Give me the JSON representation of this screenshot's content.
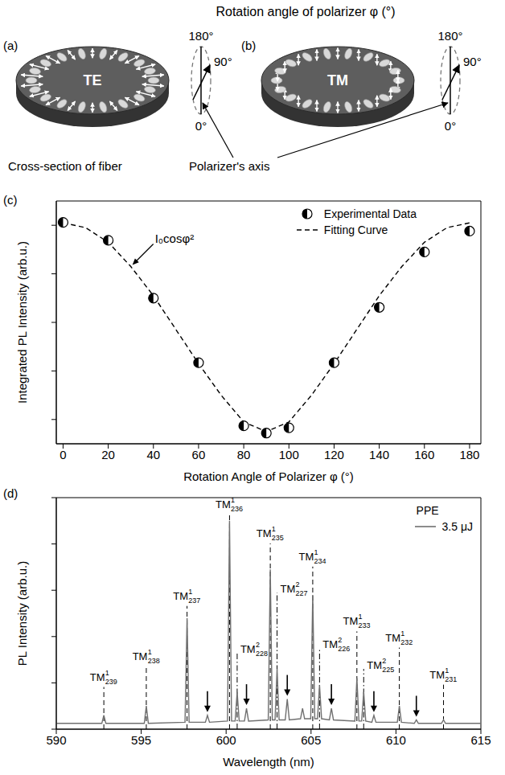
{
  "header": {
    "title": "Rotation angle of polarizer φ (°)"
  },
  "diagrams": [
    {
      "panel": "(a)",
      "mode": "TE",
      "angle_labels": [
        "180°",
        "90°",
        "0°"
      ]
    },
    {
      "panel": "(b)",
      "mode": "TM",
      "angle_labels": [
        "180°",
        "90°",
        "0°"
      ]
    }
  ],
  "annotations": {
    "fiber": "Cross-section of fiber",
    "polarizer": "Polarizer's axis"
  },
  "chart_data": [
    {
      "panel": "(c)",
      "type": "scatter",
      "xlabel": "Rotation Angle of Polarizer φ (°)",
      "ylabel": "Integrated PL Intensity (arb.u.)",
      "xlim": [
        -3,
        185
      ],
      "xticks": [
        0,
        20,
        40,
        60,
        80,
        100,
        120,
        140,
        160,
        180
      ],
      "ylim": [
        0,
        5
      ],
      "yticks": [
        0.5,
        1.5,
        2.5,
        3.5,
        4.5
      ],
      "tick_labels": "x",
      "legend": "upper right",
      "annotation": {
        "text": "I₀cosφ²"
      },
      "series": [
        {
          "name": "Experimental Data",
          "type": "scatter",
          "marker": "half_filled_circle",
          "color": "#000000",
          "x": [
            0,
            20,
            40,
            60,
            80,
            90,
            100,
            120,
            140,
            160,
            180
          ],
          "values": [
            4.56,
            4.19,
            3.0,
            1.67,
            0.37,
            0.22,
            0.33,
            1.67,
            2.81,
            3.95,
            4.38
          ]
        },
        {
          "name": "Fitting Curve",
          "type": "line",
          "line_style": "dashed",
          "color": "#000000",
          "x": [
            0,
            10,
            20,
            30,
            40,
            50,
            60,
            70,
            80,
            90,
            100,
            110,
            120,
            130,
            140,
            150,
            160,
            170,
            180
          ],
          "values": [
            4.55,
            4.45,
            4.15,
            3.65,
            3.05,
            2.35,
            1.65,
            1.0,
            0.45,
            0.25,
            0.45,
            1.0,
            1.65,
            2.35,
            3.05,
            3.65,
            4.15,
            4.45,
            4.55
          ]
        }
      ]
    },
    {
      "panel": "(d)",
      "type": "line",
      "xlabel": "Wavelength (nm)",
      "ylabel": "PL Intensity (arb.u.)",
      "xlim": [
        590,
        615
      ],
      "xticks": [
        590,
        595,
        600,
        605,
        610,
        615
      ],
      "ylim": [
        0,
        10
      ],
      "yticks": [
        0,
        2,
        4,
        6,
        8,
        10
      ],
      "tick_labels": "x",
      "legend": "upper right",
      "legend_title": "PPE",
      "series": [
        {
          "name": "3.5 μJ",
          "color": "#707070",
          "x": [
            590,
            592.68,
            592.8,
            592.92,
            595.18,
            595.3,
            595.42,
            597.58,
            597.7,
            597.82,
            598.78,
            598.9,
            599.02,
            600.08,
            600.2,
            600.32,
            600.53,
            600.65,
            600.77,
            601.08,
            601.2,
            601.32,
            602.48,
            602.6,
            602.72,
            602.88,
            603.0,
            603.12,
            603.48,
            603.6,
            603.72,
            604.38,
            604.5,
            604.62,
            604.98,
            605.1,
            605.22,
            605.38,
            605.5,
            605.62,
            606.08,
            606.2,
            606.32,
            607.58,
            607.7,
            607.82,
            607.98,
            608.1,
            608.22,
            608.58,
            608.7,
            608.82,
            610.08,
            610.2,
            610.32,
            611.08,
            611.2,
            611.32,
            612.68,
            612.8,
            612.92,
            615
          ],
          "values": [
            0.25,
            0.25,
            0.6,
            0.25,
            0.25,
            1.0,
            0.25,
            0.3,
            4.8,
            0.3,
            0.3,
            0.6,
            0.3,
            0.35,
            9.0,
            0.35,
            0.35,
            1.6,
            0.35,
            0.35,
            0.9,
            0.35,
            0.4,
            6.9,
            0.4,
            0.4,
            2.6,
            0.4,
            0.4,
            1.3,
            0.4,
            0.45,
            0.9,
            0.45,
            0.45,
            5.8,
            0.45,
            0.45,
            1.9,
            0.45,
            0.4,
            0.9,
            0.4,
            0.35,
            2.2,
            0.35,
            0.35,
            1.6,
            0.35,
            0.3,
            0.6,
            0.3,
            0.3,
            1.0,
            0.3,
            0.25,
            0.4,
            0.25,
            0.25,
            0.4,
            0.25,
            0.25
          ]
        }
      ],
      "peak_labels": [
        {
          "x": 592.8,
          "text": "TM",
          "sup": "1",
          "sub": "239",
          "line_style": "dashed"
        },
        {
          "x": 595.3,
          "text": "TM",
          "sup": "1",
          "sub": "238",
          "line_style": "dashed"
        },
        {
          "x": 597.7,
          "text": "TM",
          "sup": "1",
          "sub": "237",
          "line_style": "dashed"
        },
        {
          "x": 600.2,
          "text": "TM",
          "sup": "1",
          "sub": "236",
          "line_style": "dashed"
        },
        {
          "x": 600.65,
          "text": "TM",
          "sup": "2",
          "sub": "228",
          "line_style": "dash_dot"
        },
        {
          "x": 602.6,
          "text": "TM",
          "sup": "1",
          "sub": "235",
          "line_style": "dashed"
        },
        {
          "x": 603.0,
          "text": "TM",
          "sup": "2",
          "sub": "227",
          "line_style": "dash_dot"
        },
        {
          "x": 605.1,
          "text": "TM",
          "sup": "1",
          "sub": "234",
          "line_style": "dashed"
        },
        {
          "x": 605.5,
          "text": "TM",
          "sup": "2",
          "sub": "226",
          "line_style": "dash_dot"
        },
        {
          "x": 607.7,
          "text": "TM",
          "sup": "1",
          "sub": "233",
          "line_style": "dashed"
        },
        {
          "x": 608.1,
          "text": "TM",
          "sup": "2",
          "sub": "225",
          "line_style": "dash_dot"
        },
        {
          "x": 610.2,
          "text": "TM",
          "sup": "1",
          "sub": "232",
          "line_style": "dashed"
        },
        {
          "x": 612.8,
          "text": "TM",
          "sup": "1",
          "sub": "231",
          "line_style": "dashed"
        }
      ],
      "arrows": [
        598.9,
        601.2,
        603.6,
        606.2,
        608.7,
        611.2
      ]
    }
  ]
}
